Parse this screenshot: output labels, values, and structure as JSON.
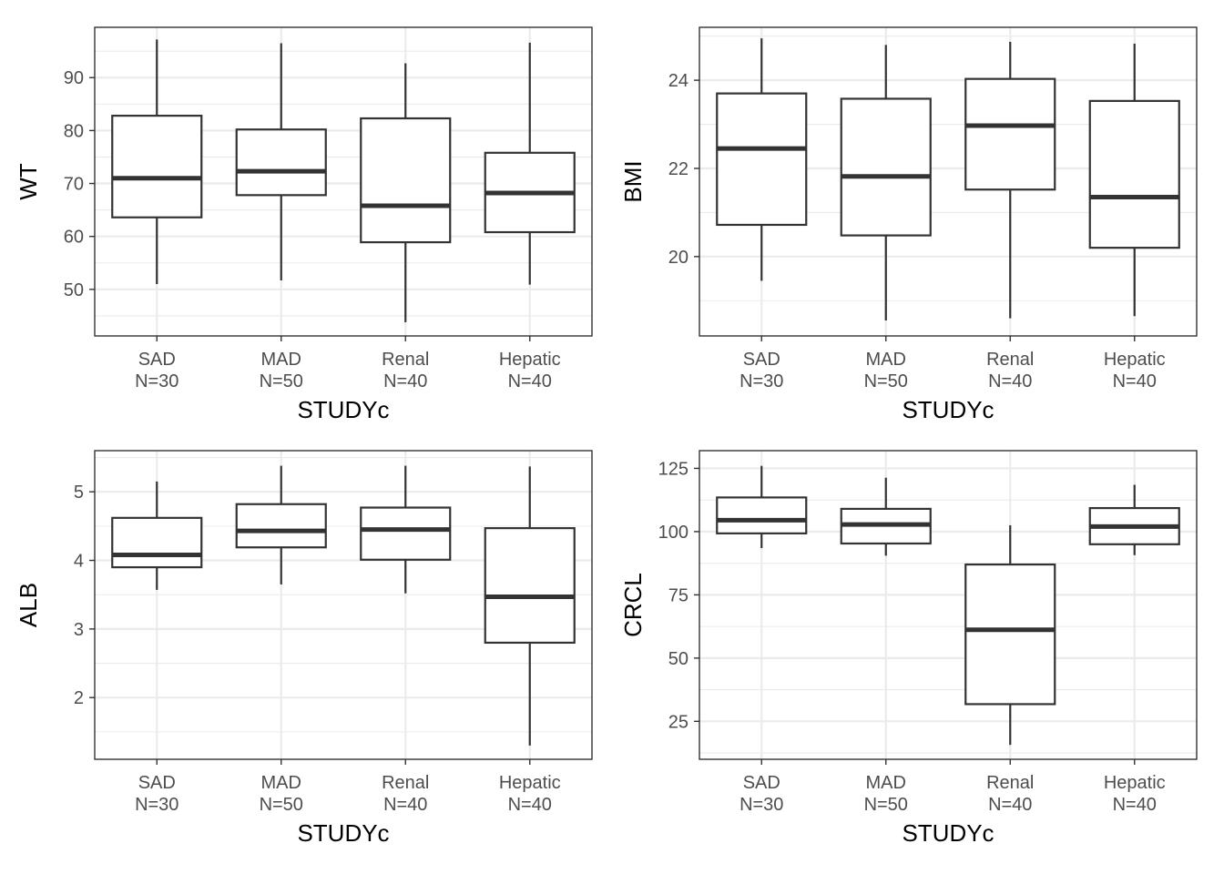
{
  "chart_data": [
    {
      "type": "box",
      "id": "wt",
      "ylabel": "WT",
      "xlabel": "STUDYc",
      "ylim": [
        41.2,
        99.5
      ],
      "yticks": [
        50,
        60,
        70,
        80,
        90
      ],
      "yminor": [
        45,
        55,
        65,
        75,
        85,
        95
      ],
      "categories": [
        "SAD",
        "MAD",
        "Renal",
        "Hepatic"
      ],
      "category_n": [
        "N=30",
        "N=50",
        "N=40",
        "N=40"
      ],
      "boxes": [
        {
          "min": 51.0,
          "q1": 63.6,
          "median": 71.0,
          "q3": 82.8,
          "max": 97.2
        },
        {
          "min": 51.7,
          "q1": 67.8,
          "median": 72.3,
          "q3": 80.2,
          "max": 96.5
        },
        {
          "min": 43.8,
          "q1": 58.9,
          "median": 65.8,
          "q3": 82.3,
          "max": 92.7
        },
        {
          "min": 50.9,
          "q1": 60.8,
          "median": 68.2,
          "q3": 75.8,
          "max": 96.6
        }
      ]
    },
    {
      "type": "box",
      "id": "bmi",
      "ylabel": "BMI",
      "xlabel": "STUDYc",
      "ylim": [
        18.2,
        25.2
      ],
      "yticks": [
        20,
        22,
        24
      ],
      "yminor": [
        19,
        21,
        23,
        25
      ],
      "categories": [
        "SAD",
        "MAD",
        "Renal",
        "Hepatic"
      ],
      "category_n": [
        "N=30",
        "N=50",
        "N=40",
        "N=40"
      ],
      "boxes": [
        {
          "min": 19.45,
          "q1": 20.72,
          "median": 22.45,
          "q3": 23.7,
          "max": 24.95
        },
        {
          "min": 18.55,
          "q1": 20.48,
          "median": 21.82,
          "q3": 23.58,
          "max": 24.8
        },
        {
          "min": 18.6,
          "q1": 21.52,
          "median": 22.97,
          "q3": 24.03,
          "max": 24.87
        },
        {
          "min": 18.65,
          "q1": 20.2,
          "median": 21.35,
          "q3": 23.53,
          "max": 24.83
        }
      ]
    },
    {
      "type": "box",
      "id": "alb",
      "ylabel": "ALB",
      "xlabel": "STUDYc",
      "ylim": [
        1.1,
        5.6
      ],
      "yticks": [
        2,
        3,
        4,
        5
      ],
      "yminor": [
        1.5,
        2.5,
        3.5,
        4.5,
        5.5
      ],
      "categories": [
        "SAD",
        "MAD",
        "Renal",
        "Hepatic"
      ],
      "category_n": [
        "N=30",
        "N=50",
        "N=40",
        "N=40"
      ],
      "boxes": [
        {
          "min": 3.57,
          "q1": 3.9,
          "median": 4.08,
          "q3": 4.62,
          "max": 5.15
        },
        {
          "min": 3.65,
          "q1": 4.19,
          "median": 4.43,
          "q3": 4.82,
          "max": 5.38
        },
        {
          "min": 3.52,
          "q1": 4.01,
          "median": 4.45,
          "q3": 4.77,
          "max": 5.38
        },
        {
          "min": 1.3,
          "q1": 2.8,
          "median": 3.47,
          "q3": 4.47,
          "max": 5.37
        }
      ]
    },
    {
      "type": "box",
      "id": "crcl",
      "ylabel": "CRCL",
      "xlabel": "STUDYc",
      "ylim": [
        10,
        132
      ],
      "yticks": [
        25,
        50,
        75,
        100,
        125
      ],
      "yminor": [
        12.5,
        37.5,
        62.5,
        87.5,
        112.5
      ],
      "categories": [
        "SAD",
        "MAD",
        "Renal",
        "Hepatic"
      ],
      "category_n": [
        "N=30",
        "N=50",
        "N=40",
        "N=40"
      ],
      "boxes": [
        {
          "min": 93.5,
          "q1": 99.3,
          "median": 104.5,
          "q3": 113.5,
          "max": 126.0
        },
        {
          "min": 90.5,
          "q1": 95.3,
          "median": 102.8,
          "q3": 109.0,
          "max": 121.3
        },
        {
          "min": 15.7,
          "q1": 31.8,
          "median": 61.2,
          "q3": 87.0,
          "max": 102.5
        },
        {
          "min": 90.7,
          "q1": 95.0,
          "median": 102.0,
          "q3": 109.3,
          "max": 118.5
        }
      ]
    }
  ]
}
